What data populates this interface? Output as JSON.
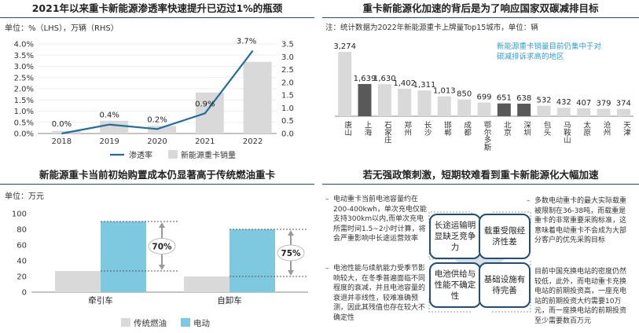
{
  "panels": {
    "p1": {
      "title": "2021年以来重卡新能源渗透率快速提升已迈过1%的瓶颈",
      "unit": "单位：%（LHS），万辆（RHS）",
      "legend_line": "渗透率",
      "legend_bar": "新能源重卡销量"
    },
    "p2": {
      "title": "重卡新能源化加速的背后是为了响应国家双碳减排目标",
      "note": "注：统计数据为2022年新能源重卡上牌量Top15城市，单位：辆",
      "annotation_line1": "新能源重卡销量目前仍集中于对",
      "annotation_line2": "碳减排诉求高的地区"
    },
    "p3": {
      "title": "新能源重卡当前初始购置成本仍显著高于传统燃油重卡",
      "unit": "单位：万元",
      "legend_fuel": "传统燃油",
      "legend_ev": "电动"
    },
    "p4": {
      "title": "若无强政策刺激，短期较难看到重卡新能源化大幅加速",
      "left1": "电动重卡当前电池容量约在200-400kwh，单次充电仅能支持300km以内,而单次充电所需时间1.5~2小时计算，将会严重影响中长途运营效率",
      "left2": "电池性能与续航能力受季节影响较大，在冬季普遍面临不同程度的衰减，并且电池容量的衰退并非线性，较难准确预测，因此其残值也存在较大不确定性",
      "right1": "多数电动重卡的最大实际载重被限制在36-38吨，而载重是重卡的非常重要采购标准，这意味着电动重卡不会成为大部分客户的优先采购目标",
      "right2": "目前中国充换电站的密度仍然较低，此外，而电动重卡充换电站的前期投资高，一座充电站的前期投资大约需要10万元，而一座换电站的前期投资至少需要数百万元",
      "box_tl": "长途运输明显缺乏竞争力",
      "box_tr": "载重受限经济性差",
      "box_bl": "电池供给与性能不确定性",
      "box_br": "基础设施有待完善"
    }
  },
  "colors": {
    "bar_gray": "#d9d9d9",
    "accent_blue": "#1f6e9c",
    "highlight": "#595959",
    "ev_cyan": "#7ec8e0",
    "text_cyan": "#2e9fcf"
  },
  "chart_data": [
    {
      "type": "bar",
      "categories": [
        "2018",
        "2019",
        "2020",
        "2021",
        "2022"
      ],
      "series": [
        {
          "name": "新能源重卡销量",
          "axis": "right",
          "values": [
            0.1,
            0.5,
            0.3,
            1.6,
            2.8
          ]
        },
        {
          "name": "渗透率",
          "axis": "left",
          "type": "line",
          "values": [
            0.0,
            0.4,
            0.2,
            0.9,
            3.7
          ],
          "labels": [
            "0.0%",
            "0.4%",
            "0.2%",
            "0.9%",
            "3.7%"
          ]
        }
      ],
      "ylim_left": [
        0,
        4.0
      ],
      "ylim_right": [
        0,
        3.5
      ],
      "yticks_left": [
        "0.0%",
        "0.5%",
        "1.0%",
        "1.5%",
        "2.0%",
        "2.5%",
        "3.0%",
        "3.5%",
        "4.0%"
      ],
      "yticks_right": [
        "0.0",
        "0.5",
        "1.0",
        "1.5",
        "2.0",
        "2.5",
        "3.0",
        "3.5"
      ],
      "legend": "bottom"
    },
    {
      "type": "bar",
      "categories": [
        "唐山",
        "上海",
        "石家庄",
        "郑州",
        "长沙",
        "邯郸",
        "成都",
        "鄂尔多斯",
        "北京",
        "深圳",
        "包头",
        "马鞍山",
        "太原",
        "沧州",
        "天津"
      ],
      "values": [
        3274,
        1639,
        1630,
        1402,
        1311,
        1013,
        850,
        699,
        651,
        638,
        532,
        432,
        407,
        379,
        374
      ],
      "highlighted": [
        "上海",
        "北京",
        "深圳"
      ],
      "ylim": [
        0,
        3600
      ]
    },
    {
      "type": "bar",
      "categories": [
        "牵引车",
        "自卸车"
      ],
      "series": [
        {
          "name": "传统燃油",
          "values": [
            27,
            20
          ]
        },
        {
          "name": "电动",
          "values": [
            90,
            80
          ]
        }
      ],
      "annotations": [
        "70%",
        "75%"
      ],
      "yticks": [
        "0",
        "20",
        "40",
        "60",
        "80",
        "100"
      ],
      "ylim": [
        0,
        100
      ],
      "legend": "bottom"
    }
  ]
}
